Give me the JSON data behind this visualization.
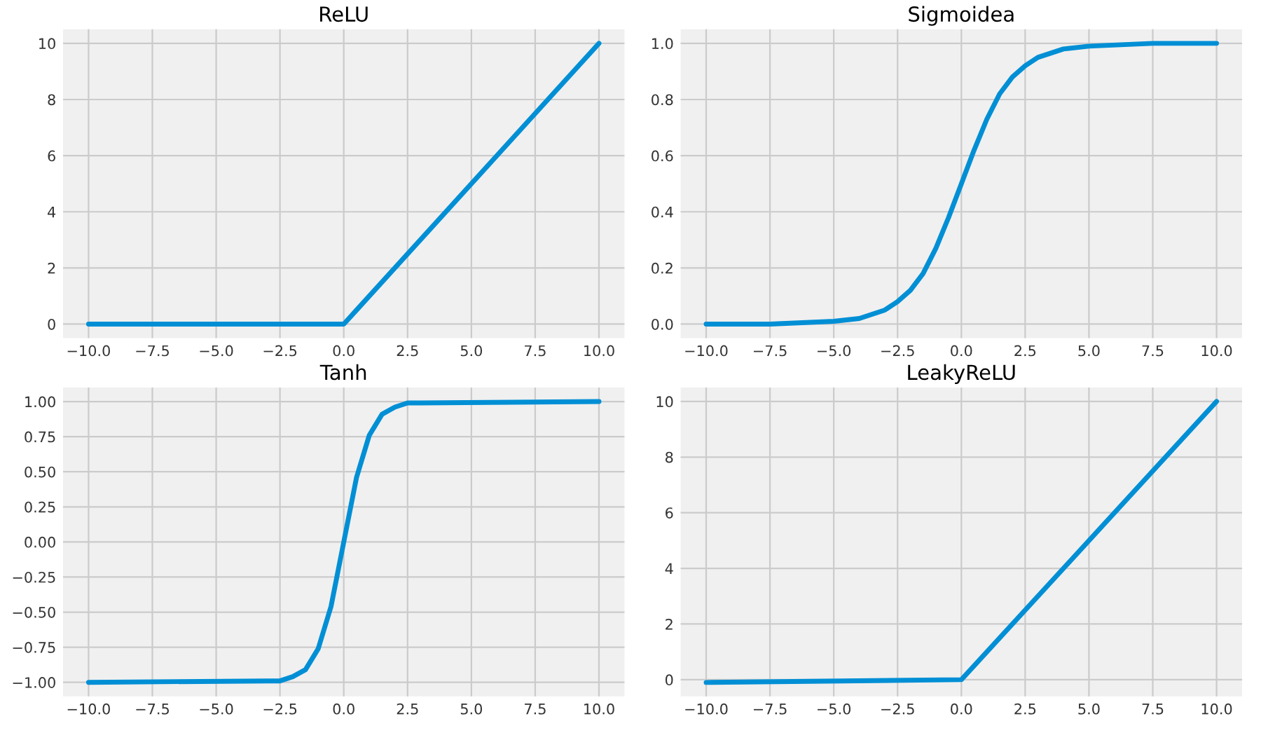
{
  "chart_data": [
    {
      "type": "line",
      "title": "ReLU",
      "x": [
        -10,
        0,
        10
      ],
      "series": [
        {
          "color": "#008fd5",
          "values": [
            0,
            0,
            10
          ]
        }
      ],
      "xlim": [
        -11,
        11
      ],
      "ylim": [
        -0.5,
        10.5
      ],
      "xticks": [
        {
          "value": -10,
          "label": "−10.0"
        },
        {
          "value": -7.5,
          "label": "−7.5"
        },
        {
          "value": -5,
          "label": "−5.0"
        },
        {
          "value": -2.5,
          "label": "−2.5"
        },
        {
          "value": 0,
          "label": "0.0"
        },
        {
          "value": 2.5,
          "label": "2.5"
        },
        {
          "value": 5,
          "label": "5.0"
        },
        {
          "value": 7.5,
          "label": "7.5"
        },
        {
          "value": 10,
          "label": "10.0"
        }
      ],
      "yticks": [
        0,
        2,
        4,
        6,
        8,
        10
      ],
      "grid": true,
      "marker": "none",
      "line_style": "solid"
    },
    {
      "type": "line",
      "title": "Sigmoidea",
      "x": [
        -10,
        -7.5,
        -5,
        -4,
        -3,
        -2.5,
        -2,
        -1.5,
        -1,
        -0.5,
        0,
        0.5,
        1,
        1.5,
        2,
        2.5,
        3,
        4,
        5,
        7.5,
        10
      ],
      "series": [
        {
          "color": "#008fd5",
          "values": [
            0.0,
            0.0,
            0.01,
            0.02,
            0.05,
            0.08,
            0.12,
            0.18,
            0.27,
            0.38,
            0.5,
            0.62,
            0.73,
            0.82,
            0.88,
            0.92,
            0.95,
            0.98,
            0.99,
            1.0,
            1.0
          ]
        }
      ],
      "xlim": [
        -11,
        11
      ],
      "ylim": [
        -0.05,
        1.05
      ],
      "xticks": [
        {
          "value": -10,
          "label": "−10.0"
        },
        {
          "value": -7.5,
          "label": "−7.5"
        },
        {
          "value": -5,
          "label": "−5.0"
        },
        {
          "value": -2.5,
          "label": "−2.5"
        },
        {
          "value": 0,
          "label": "0.0"
        },
        {
          "value": 2.5,
          "label": "2.5"
        },
        {
          "value": 5,
          "label": "5.0"
        },
        {
          "value": 7.5,
          "label": "7.5"
        },
        {
          "value": 10,
          "label": "10.0"
        }
      ],
      "yticks": [
        {
          "value": 0,
          "label": "0.0"
        },
        {
          "value": 0.2,
          "label": "0.2"
        },
        {
          "value": 0.4,
          "label": "0.4"
        },
        {
          "value": 0.6,
          "label": "0.6"
        },
        {
          "value": 0.8,
          "label": "0.8"
        },
        {
          "value": 1,
          "label": "1.0"
        }
      ],
      "grid": true,
      "marker": "none",
      "line_style": "solid"
    },
    {
      "type": "line",
      "title": "Tanh",
      "x": [
        -10,
        -3,
        -2.5,
        -2,
        -1.5,
        -1,
        -0.5,
        0,
        0.5,
        1,
        1.5,
        2,
        2.5,
        3,
        10
      ],
      "series": [
        {
          "color": "#008fd5",
          "values": [
            -1.0,
            -0.99,
            -0.99,
            -0.96,
            -0.91,
            -0.76,
            -0.46,
            0.0,
            0.46,
            0.76,
            0.91,
            0.96,
            0.99,
            0.99,
            1.0
          ]
        }
      ],
      "xlim": [
        -11,
        11
      ],
      "ylim": [
        -1.1,
        1.1
      ],
      "xticks": [
        {
          "value": -10,
          "label": "−10.0"
        },
        {
          "value": -7.5,
          "label": "−7.5"
        },
        {
          "value": -5,
          "label": "−5.0"
        },
        {
          "value": -2.5,
          "label": "−2.5"
        },
        {
          "value": 0,
          "label": "0.0"
        },
        {
          "value": 2.5,
          "label": "2.5"
        },
        {
          "value": 5,
          "label": "5.0"
        },
        {
          "value": 7.5,
          "label": "7.5"
        },
        {
          "value": 10,
          "label": "10.0"
        }
      ],
      "yticks": [
        {
          "value": -1,
          "label": "−1.00"
        },
        {
          "value": -0.75,
          "label": "−0.75"
        },
        {
          "value": -0.5,
          "label": "−0.50"
        },
        {
          "value": -0.25,
          "label": "−0.25"
        },
        {
          "value": 0,
          "label": "0.00"
        },
        {
          "value": 0.25,
          "label": "0.25"
        },
        {
          "value": 0.5,
          "label": "0.50"
        },
        {
          "value": 0.75,
          "label": "0.75"
        },
        {
          "value": 1,
          "label": "1.00"
        }
      ],
      "grid": true,
      "marker": "none",
      "line_style": "solid"
    },
    {
      "type": "line",
      "title": "LeakyReLU",
      "x": [
        -10,
        0,
        10
      ],
      "series": [
        {
          "color": "#008fd5",
          "values": [
            -0.1,
            0,
            10
          ]
        }
      ],
      "xlim": [
        -11,
        11
      ],
      "ylim": [
        -0.6,
        10.5
      ],
      "xticks": [
        {
          "value": -10,
          "label": "−10.0"
        },
        {
          "value": -7.5,
          "label": "−7.5"
        },
        {
          "value": -5,
          "label": "−5.0"
        },
        {
          "value": -2.5,
          "label": "−2.5"
        },
        {
          "value": 0,
          "label": "0.0"
        },
        {
          "value": 2.5,
          "label": "2.5"
        },
        {
          "value": 5,
          "label": "5.0"
        },
        {
          "value": 7.5,
          "label": "7.5"
        },
        {
          "value": 10,
          "label": "10.0"
        }
      ],
      "yticks": [
        0,
        2,
        4,
        6,
        8,
        10
      ],
      "grid": true,
      "marker": "none",
      "line_style": "solid"
    }
  ]
}
